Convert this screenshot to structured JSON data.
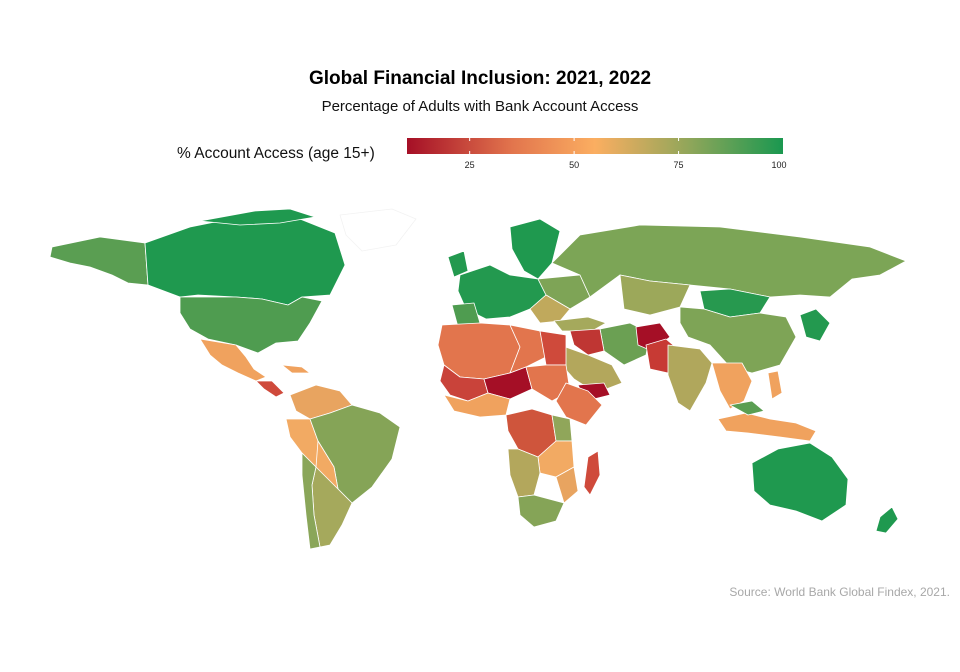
{
  "title": "Global Financial Inclusion: 2021, 2022",
  "subtitle": "Percentage of Adults with Bank Account Access",
  "legend": {
    "title": "% Account Access (age 15+)",
    "min": 10,
    "max": 100,
    "ticks": [
      "25",
      "50",
      "75",
      "100"
    ],
    "tick_values": [
      25,
      50,
      75,
      100
    ],
    "colors": {
      "low": "#a50f26",
      "mid_low": "#e2754d",
      "mid": "#fbae61",
      "mid_high": "#90a65a",
      "high": "#1a9850"
    }
  },
  "caption": "Source: World Bank Global Findex, 2021.",
  "map_data": {
    "type": "choropleth",
    "metric": "% Account Access (age 15+)",
    "regions": [
      {
        "region": "Canada",
        "value": 99
      },
      {
        "region": "United States",
        "value": 94
      },
      {
        "region": "Mexico",
        "value": 49
      },
      {
        "region": "Central America",
        "value": 35
      },
      {
        "region": "Brazil",
        "value": 84
      },
      {
        "region": "Argentina",
        "value": 72
      },
      {
        "region": "Chile",
        "value": 87
      },
      {
        "region": "Peru",
        "value": 57
      },
      {
        "region": "Colombia",
        "value": 60
      },
      {
        "region": "Western Europe",
        "value": 99
      },
      {
        "region": "Russia",
        "value": 89
      },
      {
        "region": "Mongolia",
        "value": 98
      },
      {
        "region": "China",
        "value": 89
      },
      {
        "region": "India",
        "value": 78
      },
      {
        "region": "Afghanistan",
        "value": 10
      },
      {
        "region": "Pakistan",
        "value": 21
      },
      {
        "region": "Iran",
        "value": 90
      },
      {
        "region": "Saudi Arabia",
        "value": 74
      },
      {
        "region": "Yemen",
        "value": 12
      },
      {
        "region": "Iraq",
        "value": 19
      },
      {
        "region": "Egypt",
        "value": 27
      },
      {
        "region": "Niger",
        "value": 10
      },
      {
        "region": "Mali",
        "value": 30
      },
      {
        "region": "Algeria",
        "value": 44
      },
      {
        "region": "Morocco",
        "value": 44
      },
      {
        "region": "Nigeria",
        "value": 45
      },
      {
        "region": "DR Congo",
        "value": 26
      },
      {
        "region": "Ethiopia",
        "value": 46
      },
      {
        "region": "Kenya",
        "value": 79
      },
      {
        "region": "Madagascar",
        "value": 18
      },
      {
        "region": "South Africa",
        "value": 85
      },
      {
        "region": "Namibia",
        "value": 71
      },
      {
        "region": "Indonesia",
        "value": 52
      },
      {
        "region": "Philippines",
        "value": 51
      },
      {
        "region": "Japan",
        "value": 98
      },
      {
        "region": "Australia",
        "value": 99
      },
      {
        "region": "New Zealand",
        "value": 99
      }
    ]
  }
}
